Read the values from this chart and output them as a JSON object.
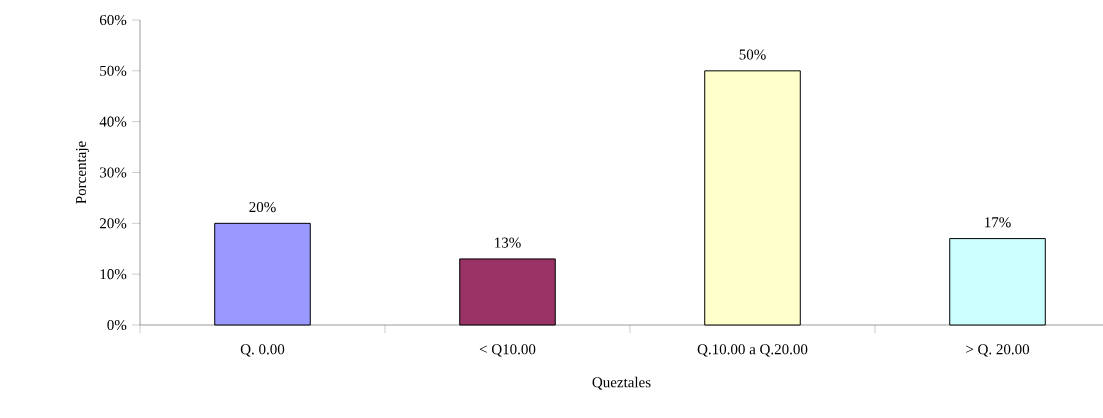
{
  "chart_data": {
    "type": "bar",
    "xlabel": "Queztales",
    "ylabel": "Porcentaje",
    "categories": [
      "Q. 0.00",
      "< Q10.00",
      "Q.10.00 a Q.20.00",
      "> Q. 20.00"
    ],
    "values": [
      20,
      13,
      50,
      17
    ],
    "colors": [
      "#9999ff",
      "#993366",
      "#ffffcc",
      "#ccffff"
    ],
    "value_labels": [
      "20%",
      "13%",
      "50%",
      "17%"
    ],
    "ylim": [
      0,
      60
    ],
    "yticks": [
      {
        "value": 0,
        "label": "0%"
      },
      {
        "value": 10,
        "label": "10%"
      },
      {
        "value": 20,
        "label": "20%"
      },
      {
        "value": 30,
        "label": "30%"
      },
      {
        "value": 40,
        "label": "40%"
      },
      {
        "value": 50,
        "label": "50%"
      },
      {
        "value": 60,
        "label": "60%"
      }
    ],
    "grid": false
  }
}
